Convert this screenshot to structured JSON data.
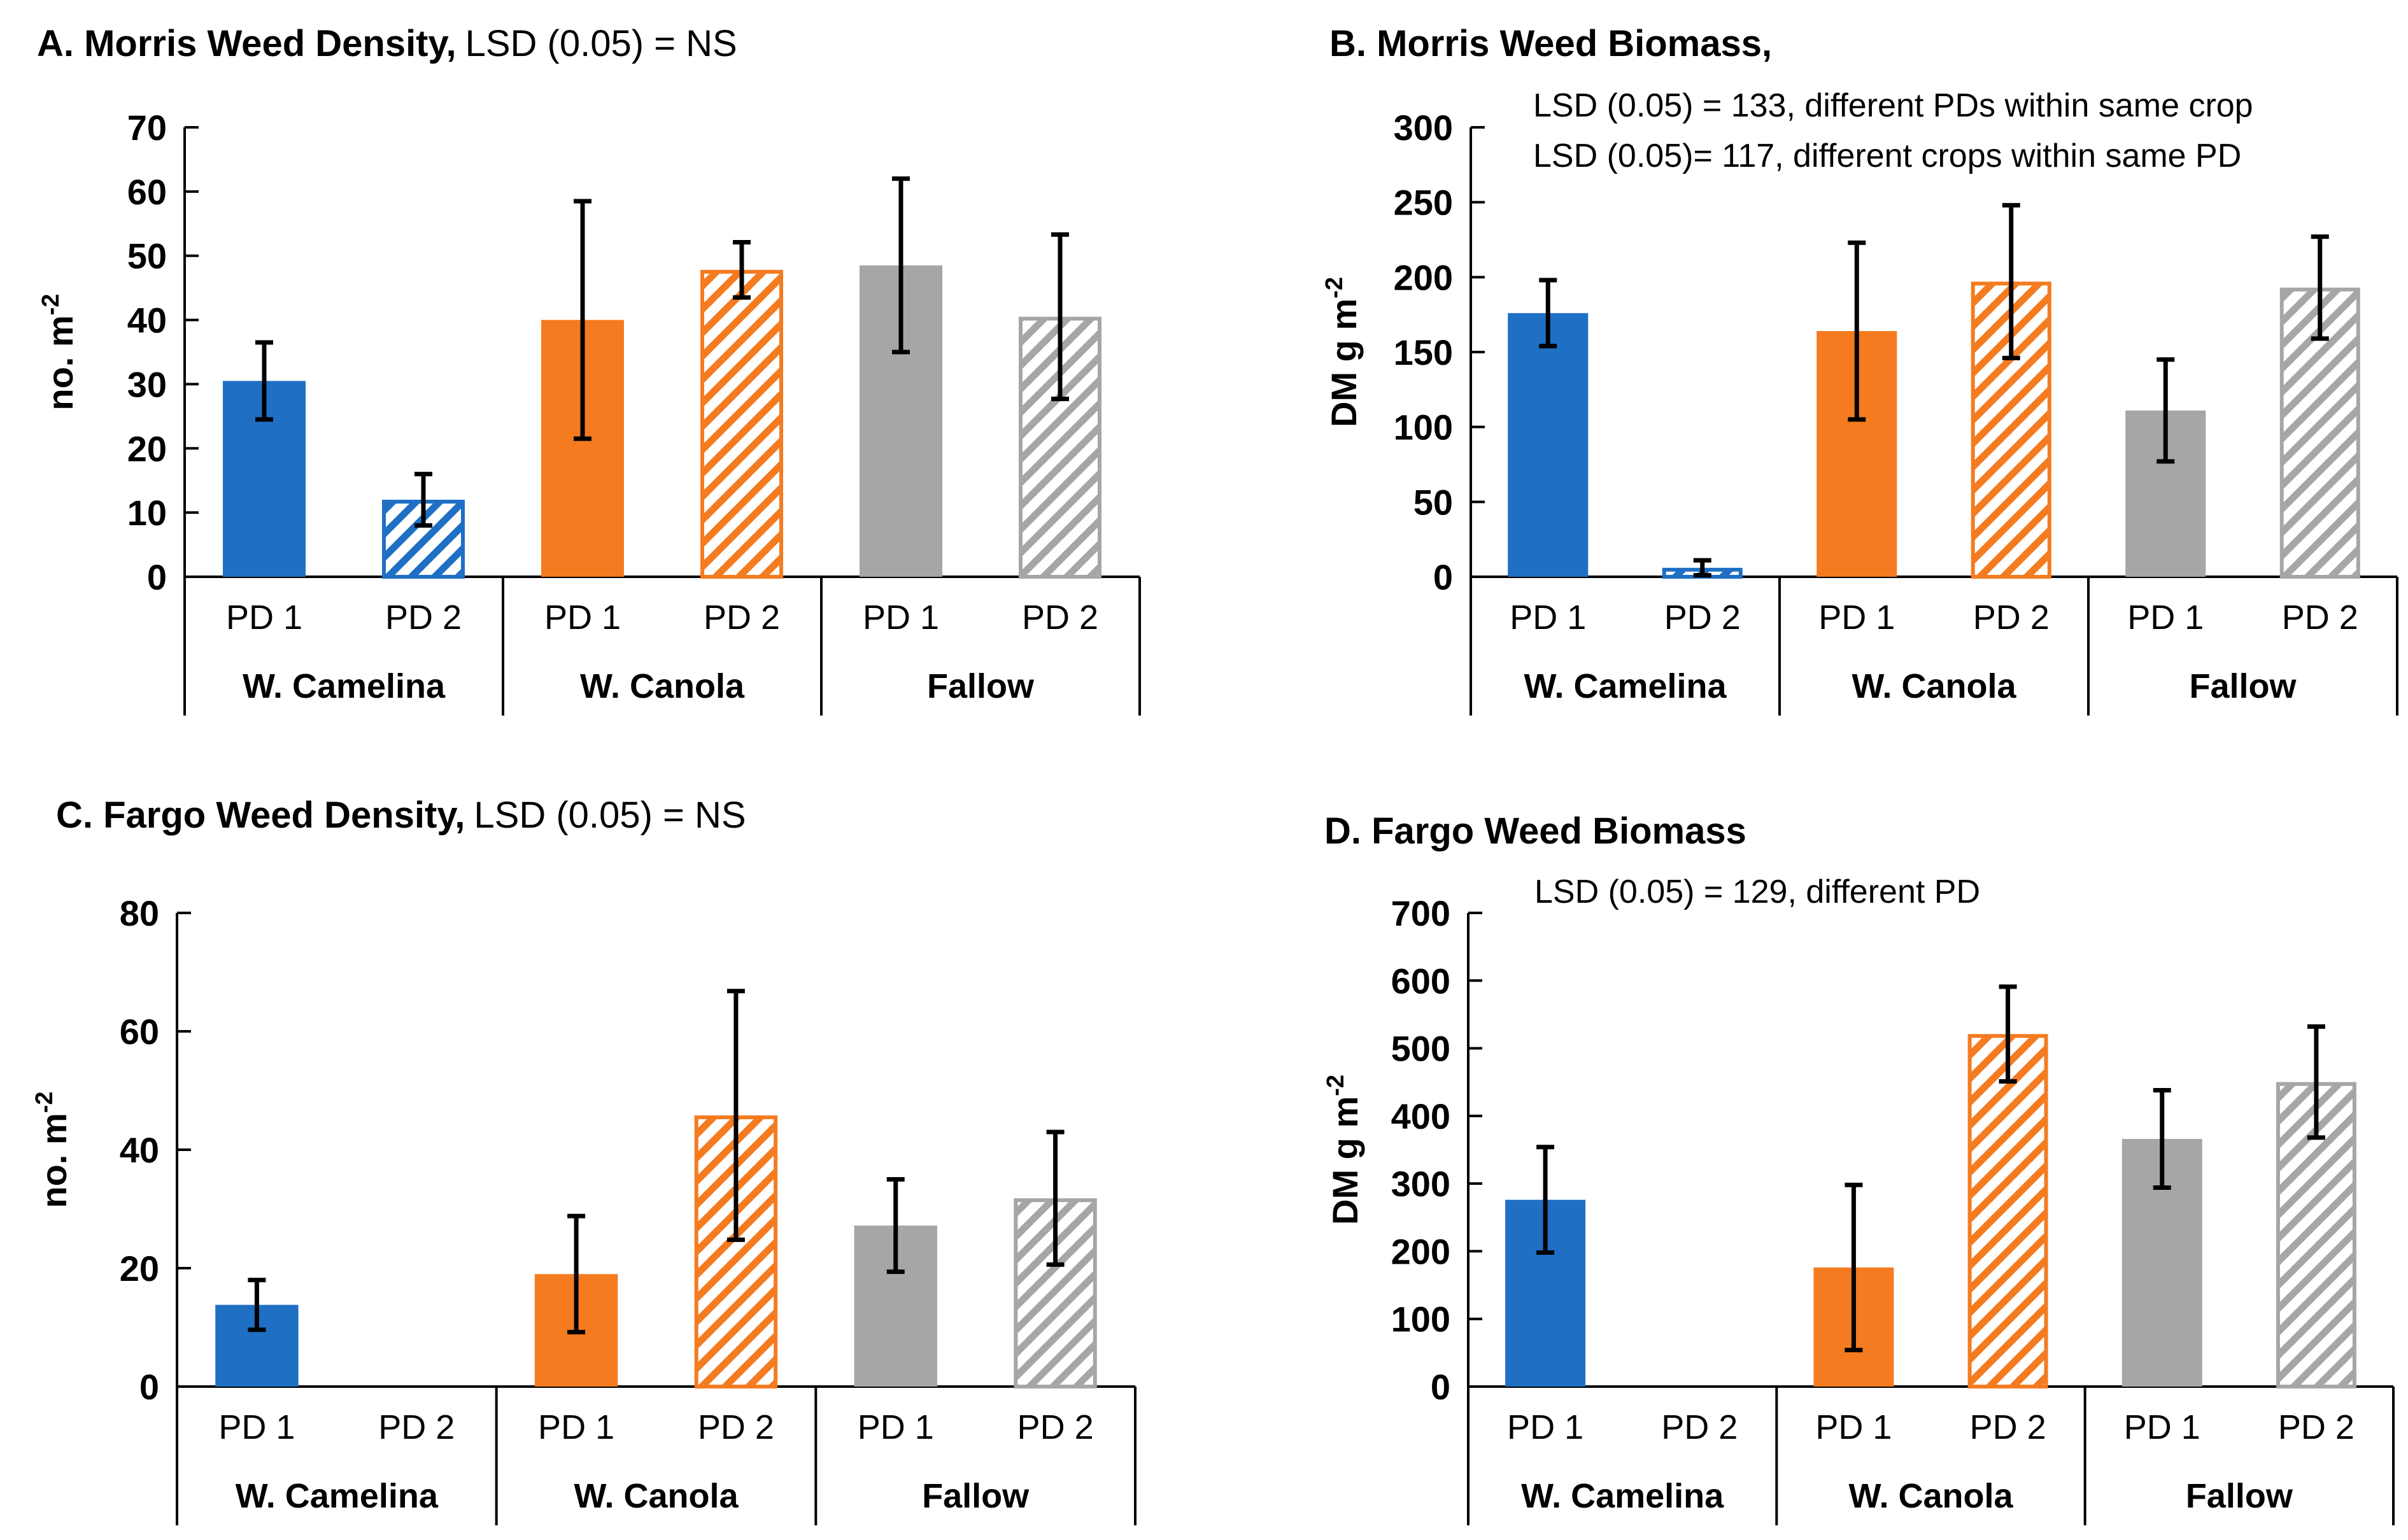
{
  "colors": {
    "W. Camelina": "#1f6fc5",
    "W. Canola": "#f47b20",
    "Fallow": "#a6a6a6"
  },
  "x_categories": [
    "PD 1",
    "PD 2",
    "PD 1",
    "PD 2",
    "PD 1",
    "PD 2"
  ],
  "x_groups": [
    "W. Camelina",
    "W. Canola",
    "Fallow"
  ],
  "chart_data": [
    {
      "type": "bar",
      "title_bold": "A. Morris Weed Density,",
      "title_rest": "LSD (0.05) = NS",
      "notes": [],
      "ylabel": "no. m",
      "ylabel_sup": "-2",
      "ylim": [
        0,
        70
      ],
      "yticks": [
        0,
        10,
        20,
        30,
        40,
        50,
        60,
        70
      ],
      "series": [
        {
          "group": "W. Camelina",
          "pd": "PD 1",
          "value": 30.5,
          "err": 6,
          "pattern": "solid"
        },
        {
          "group": "W. Camelina",
          "pd": "PD 2",
          "value": 12,
          "err": 4,
          "pattern": "hatch"
        },
        {
          "group": "W. Canola",
          "pd": "PD 1",
          "value": 40,
          "err": 18.5,
          "pattern": "solid"
        },
        {
          "group": "W. Canola",
          "pd": "PD 2",
          "value": 47.8,
          "err": 4.3,
          "pattern": "hatch"
        },
        {
          "group": "Fallow",
          "pd": "PD 1",
          "value": 48.5,
          "err": 13.5,
          "pattern": "solid"
        },
        {
          "group": "Fallow",
          "pd": "PD 2",
          "value": 40.5,
          "err": 12.8,
          "pattern": "hatch"
        }
      ]
    },
    {
      "type": "bar",
      "title_bold": "B. Morris Weed Biomass,",
      "title_rest": "",
      "notes": [
        "LSD (0.05) = 133, different PDs within same crop",
        "LSD (0.05)= 117, different crops within same PD"
      ],
      "ylabel": "DM g m",
      "ylabel_sup": "-2",
      "ylim": [
        0,
        300
      ],
      "yticks": [
        0,
        50,
        100,
        150,
        200,
        250,
        300
      ],
      "series": [
        {
          "group": "W. Camelina",
          "pd": "PD 1",
          "value": 176,
          "err": 22,
          "pattern": "solid"
        },
        {
          "group": "W. Camelina",
          "pd": "PD 2",
          "value": 6,
          "err": 5,
          "pattern": "hatch"
        },
        {
          "group": "W. Canola",
          "pd": "PD 1",
          "value": 164,
          "err": 59,
          "pattern": "solid"
        },
        {
          "group": "W. Canola",
          "pd": "PD 2",
          "value": 197,
          "err": 51,
          "pattern": "hatch"
        },
        {
          "group": "Fallow",
          "pd": "PD 1",
          "value": 111,
          "err": 34,
          "pattern": "solid"
        },
        {
          "group": "Fallow",
          "pd": "PD 2",
          "value": 193,
          "err": 34,
          "pattern": "hatch"
        }
      ]
    },
    {
      "type": "bar",
      "title_bold": "C. Fargo Weed Density,",
      "title_rest": "LSD (0.05) = NS",
      "notes": [],
      "ylabel": "no. m",
      "ylabel_sup": "-2",
      "ylim": [
        0,
        80
      ],
      "yticks": [
        0,
        20,
        40,
        60,
        80
      ],
      "series": [
        {
          "group": "W. Camelina",
          "pd": "PD 1",
          "value": 13.8,
          "err": 4.2,
          "pattern": "solid"
        },
        {
          "group": "W. Camelina",
          "pd": "PD 2",
          "value": 0,
          "err": 0,
          "pattern": "none"
        },
        {
          "group": "W. Canola",
          "pd": "PD 1",
          "value": 19,
          "err": 9.8,
          "pattern": "solid"
        },
        {
          "group": "W. Canola",
          "pd": "PD 2",
          "value": 45.8,
          "err": 21,
          "pattern": "hatch"
        },
        {
          "group": "Fallow",
          "pd": "PD 1",
          "value": 27.2,
          "err": 7.8,
          "pattern": "solid"
        },
        {
          "group": "Fallow",
          "pd": "PD 2",
          "value": 31.8,
          "err": 11.2,
          "pattern": "hatch"
        }
      ]
    },
    {
      "type": "bar",
      "title_bold": "D. Fargo Weed Biomass",
      "title_rest": "",
      "notes": [
        "LSD (0.05) = 129, different PD"
      ],
      "ylabel": "DM g m",
      "ylabel_sup": "-2",
      "ylim": [
        0,
        700
      ],
      "yticks": [
        0,
        100,
        200,
        300,
        400,
        500,
        600,
        700
      ],
      "series": [
        {
          "group": "W. Camelina",
          "pd": "PD 1",
          "value": 276,
          "err": 78,
          "pattern": "solid"
        },
        {
          "group": "W. Camelina",
          "pd": "PD 2",
          "value": 0,
          "err": 0,
          "pattern": "none"
        },
        {
          "group": "W. Canola",
          "pd": "PD 1",
          "value": 176,
          "err": 122,
          "pattern": "solid"
        },
        {
          "group": "W. Canola",
          "pd": "PD 2",
          "value": 521,
          "err": 70,
          "pattern": "hatch"
        },
        {
          "group": "Fallow",
          "pd": "PD 1",
          "value": 366,
          "err": 72,
          "pattern": "solid"
        },
        {
          "group": "Fallow",
          "pd": "PD 2",
          "value": 450,
          "err": 82,
          "pattern": "hatch"
        }
      ]
    }
  ]
}
